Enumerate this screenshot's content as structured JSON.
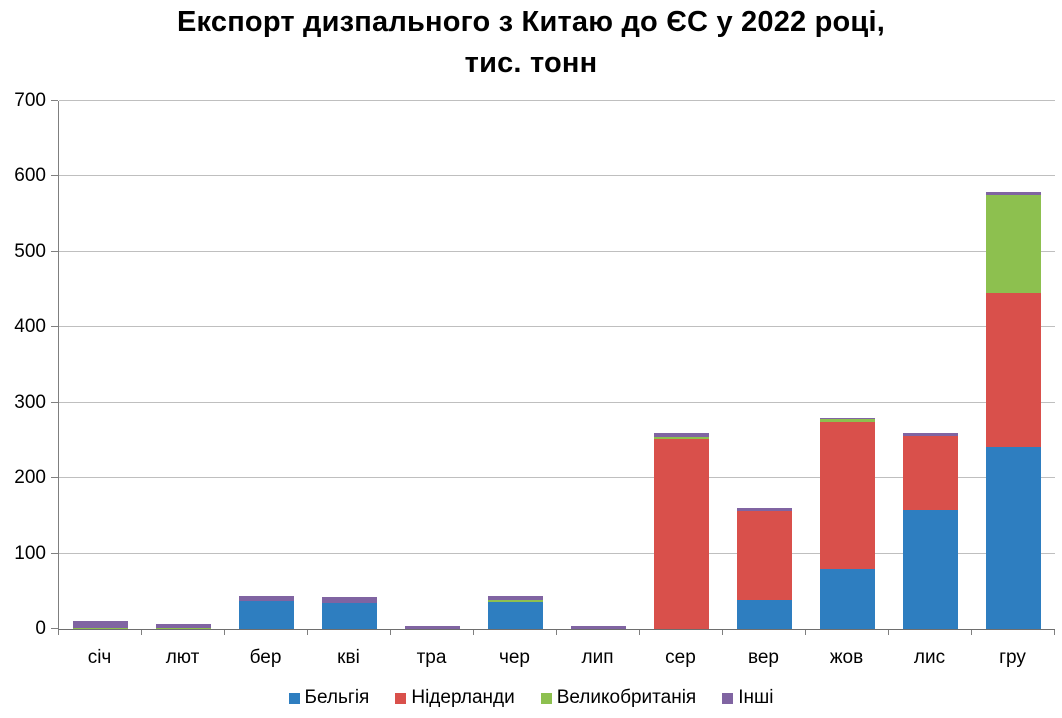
{
  "title": {
    "line1": "Експорт дизпального з Китаю до ЄС у 2022 році,",
    "line2": "тис. тонн"
  },
  "chart_data": {
    "type": "bar",
    "stacked": true,
    "title": "Експорт дизпального з Китаю до ЄС у 2022 році, тис. тонн",
    "xlabel": "",
    "ylabel": "",
    "ylim": [
      0,
      700
    ],
    "yticks": [
      0,
      100,
      200,
      300,
      400,
      500,
      600,
      700
    ],
    "grid": true,
    "legend_position": "bottom",
    "categories": [
      "січ",
      "лют",
      "бер",
      "кві",
      "тра",
      "чер",
      "лип",
      "сер",
      "вер",
      "жов",
      "лис",
      "гру"
    ],
    "series": [
      {
        "name": "Бельгія",
        "color": "#2e7ec0",
        "values": [
          0,
          0,
          37,
          35,
          0,
          36,
          0,
          0,
          38,
          80,
          158,
          241
        ]
      },
      {
        "name": "Нідерланди",
        "color": "#d9504b",
        "values": [
          0,
          0,
          0,
          0,
          0,
          0,
          0,
          252,
          119,
          195,
          98,
          204
        ]
      },
      {
        "name": "Великобританія",
        "color": "#8dc04f",
        "values": [
          2,
          1,
          0,
          0,
          0,
          2,
          0,
          3,
          0,
          3,
          0,
          130
        ]
      },
      {
        "name": "Інші",
        "color": "#8064a2",
        "values": [
          9,
          5,
          7,
          7,
          4,
          6,
          4,
          5,
          3,
          2,
          4,
          4
        ]
      }
    ]
  },
  "colors": {
    "background": "#ffffff",
    "gridline": "#bfbfbf",
    "axis": "#7f7f7f",
    "text": "#000000"
  }
}
